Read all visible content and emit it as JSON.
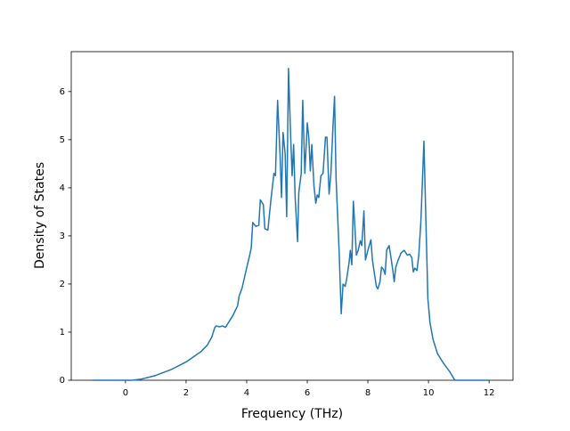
{
  "chart_data": {
    "type": "line",
    "xlabel": "Frequency (THz)",
    "ylabel": "Density of States",
    "x": [
      -1.1,
      0.2,
      0.5,
      1,
      1.5,
      2,
      2.5,
      2.7,
      2.85,
      2.95,
      3.0,
      3.1,
      3.2,
      3.3,
      3.4,
      3.55,
      3.7,
      3.75,
      3.85,
      3.95,
      4.1,
      4.15,
      4.2,
      4.3,
      4.4,
      4.45,
      4.55,
      4.6,
      4.7,
      4.8,
      4.9,
      4.95,
      5.02,
      5.1,
      5.15,
      5.2,
      5.27,
      5.32,
      5.38,
      5.45,
      5.5,
      5.55,
      5.6,
      5.68,
      5.72,
      5.8,
      5.85,
      5.92,
      6.0,
      6.05,
      6.1,
      6.15,
      6.22,
      6.28,
      6.33,
      6.38,
      6.45,
      6.52,
      6.6,
      6.65,
      6.72,
      6.78,
      6.85,
      6.9,
      6.95,
      7.05,
      7.12,
      7.18,
      7.25,
      7.3,
      7.38,
      7.42,
      7.47,
      7.52,
      7.58,
      7.62,
      7.68,
      7.75,
      7.8,
      7.87,
      7.92,
      8.0,
      8.1,
      8.15,
      8.22,
      8.28,
      8.33,
      8.4,
      8.45,
      8.52,
      8.57,
      8.62,
      8.7,
      8.75,
      8.82,
      8.87,
      8.92,
      9.0,
      9.1,
      9.2,
      9.3,
      9.38,
      9.45,
      9.5,
      9.55,
      9.62,
      9.68,
      9.75,
      9.85,
      9.92,
      9.98,
      10.05,
      10.15,
      10.3,
      10.5,
      10.7,
      10.85,
      10.9,
      12.0
    ],
    "values": [
      0,
      0,
      0.02,
      0.1,
      0.22,
      0.38,
      0.6,
      0.73,
      0.9,
      1.1,
      1.13,
      1.11,
      1.13,
      1.1,
      1.2,
      1.35,
      1.55,
      1.75,
      1.92,
      2.2,
      2.6,
      2.75,
      3.28,
      3.2,
      3.22,
      3.75,
      3.65,
      3.15,
      3.12,
      3.75,
      4.3,
      4.25,
      5.82,
      4.7,
      3.8,
      5.15,
      4.7,
      3.4,
      6.48,
      5.1,
      4.25,
      4.9,
      3.8,
      2.88,
      3.9,
      4.3,
      5.82,
      4.3,
      5.35,
      5.05,
      4.35,
      4.9,
      4.05,
      3.68,
      3.85,
      3.8,
      4.25,
      4.3,
      5.05,
      5.05,
      3.87,
      4.3,
      5.3,
      5.9,
      4.2,
      2.7,
      1.38,
      2.0,
      1.95,
      2.1,
      2.45,
      2.7,
      2.4,
      3.72,
      3.1,
      2.6,
      2.7,
      2.9,
      2.8,
      3.52,
      2.5,
      2.7,
      2.92,
      2.5,
      2.2,
      1.95,
      1.9,
      2.05,
      2.35,
      2.3,
      2.2,
      2.7,
      2.8,
      2.6,
      2.3,
      2.05,
      2.35,
      2.5,
      2.65,
      2.7,
      2.6,
      2.62,
      2.55,
      2.25,
      2.33,
      2.28,
      2.6,
      3.3,
      4.97,
      3.2,
      1.7,
      1.2,
      0.85,
      0.55,
      0.35,
      0.18,
      0.02,
      0,
      0
    ],
    "color": "#1f77b4",
    "xlim": [
      -1.79,
      12.79
    ],
    "xticks": [
      0,
      2,
      4,
      6,
      8,
      10,
      12
    ],
    "ylim": [
      0,
      6.83
    ],
    "yticks": [
      0,
      1,
      2,
      3,
      4,
      5,
      6
    ]
  }
}
